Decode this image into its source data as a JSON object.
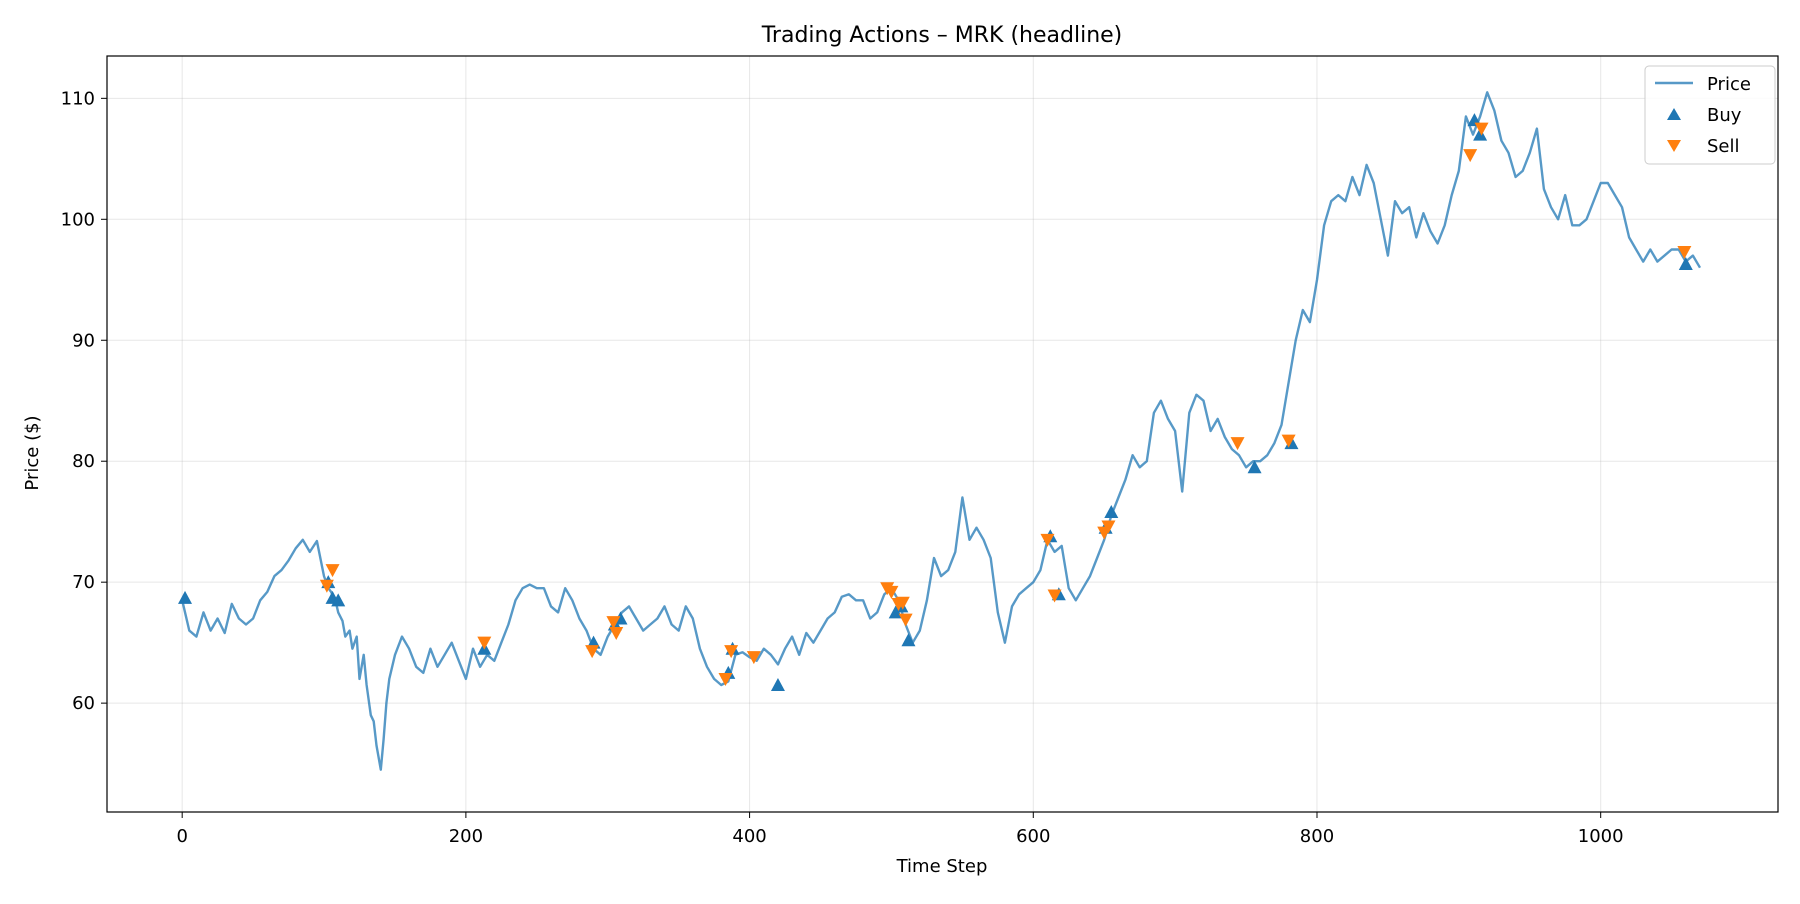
{
  "chart_data": {
    "type": "line",
    "title": "Trading Actions – MRK (headline)",
    "xlabel": "Time Step",
    "ylabel": "Price ($)",
    "xlim": [
      -53,
      1125
    ],
    "ylim": [
      51,
      113.5
    ],
    "xticks": [
      0,
      200,
      400,
      600,
      800,
      1000
    ],
    "yticks": [
      60,
      70,
      80,
      90,
      100,
      110
    ],
    "grid": true,
    "legend_position": "top-right",
    "colors": {
      "price": "#1f77b4",
      "buy": "#1f77b4",
      "sell": "#ff7f0e"
    },
    "series": [
      {
        "name": "Price",
        "x": [
          0,
          5,
          10,
          15,
          20,
          25,
          30,
          35,
          40,
          45,
          50,
          55,
          60,
          65,
          70,
          75,
          80,
          85,
          90,
          95,
          100,
          103,
          105,
          108,
          110,
          113,
          115,
          118,
          120,
          123,
          125,
          128,
          130,
          133,
          135,
          137,
          140,
          142,
          144,
          146,
          150,
          155,
          160,
          165,
          170,
          175,
          180,
          185,
          190,
          195,
          200,
          205,
          210,
          215,
          220,
          225,
          230,
          235,
          240,
          245,
          250,
          255,
          260,
          265,
          270,
          275,
          280,
          285,
          290,
          295,
          300,
          305,
          310,
          315,
          320,
          325,
          330,
          335,
          340,
          345,
          350,
          355,
          360,
          365,
          370,
          375,
          380,
          385,
          390,
          395,
          400,
          405,
          410,
          415,
          420,
          425,
          430,
          435,
          440,
          445,
          450,
          455,
          460,
          465,
          470,
          475,
          480,
          485,
          490,
          495,
          500,
          505,
          510,
          515,
          520,
          525,
          530,
          535,
          540,
          545,
          550,
          555,
          560,
          565,
          570,
          575,
          580,
          585,
          590,
          595,
          600,
          605,
          610,
          615,
          620,
          625,
          630,
          635,
          640,
          645,
          650,
          655,
          660,
          665,
          670,
          675,
          680,
          685,
          690,
          695,
          700,
          705,
          710,
          715,
          720,
          725,
          730,
          735,
          740,
          745,
          750,
          755,
          760,
          765,
          770,
          775,
          780,
          785,
          790,
          795,
          800,
          805,
          810,
          815,
          820,
          825,
          830,
          835,
          840,
          845,
          850,
          855,
          860,
          865,
          870,
          875,
          880,
          885,
          890,
          895,
          900,
          905,
          910,
          915,
          920,
          925,
          930,
          935,
          940,
          945,
          950,
          955,
          960,
          965,
          970,
          975,
          980,
          985,
          990,
          995,
          1000,
          1005,
          1010,
          1015,
          1020,
          1025,
          1030,
          1035,
          1040,
          1045,
          1050,
          1055,
          1060,
          1065,
          1070
        ],
        "values": [
          68.5,
          66.0,
          65.5,
          67.5,
          66.0,
          67.0,
          65.8,
          68.2,
          67.0,
          66.5,
          67.0,
          68.5,
          69.2,
          70.5,
          71.0,
          71.8,
          72.8,
          73.5,
          72.5,
          73.4,
          70.5,
          69.5,
          69.2,
          68.5,
          67.5,
          66.8,
          65.5,
          66.0,
          64.5,
          65.5,
          62.0,
          64.0,
          61.5,
          59.0,
          58.5,
          56.5,
          54.5,
          57.0,
          60.0,
          62.0,
          64.0,
          65.5,
          64.5,
          63.0,
          62.5,
          64.5,
          63.0,
          64.0,
          65.0,
          63.5,
          62.0,
          64.5,
          63.0,
          64.0,
          63.5,
          65.0,
          66.5,
          68.5,
          69.5,
          69.8,
          69.5,
          69.5,
          68.0,
          67.5,
          69.5,
          68.5,
          67.0,
          66.0,
          64.5,
          64.0,
          65.5,
          66.5,
          67.5,
          68.0,
          67.0,
          66.0,
          66.5,
          67.0,
          68.0,
          66.5,
          66.0,
          68.0,
          67.0,
          64.5,
          63.0,
          62.0,
          61.5,
          61.8,
          64.0,
          64.2,
          63.8,
          63.5,
          64.5,
          64.0,
          63.2,
          64.5,
          65.5,
          64.0,
          65.8,
          65.0,
          66.0,
          67.0,
          67.5,
          68.8,
          69.0,
          68.5,
          68.5,
          67.0,
          67.5,
          69.0,
          69.5,
          68.5,
          66.5,
          65.0,
          66.0,
          68.5,
          72.0,
          70.5,
          71.0,
          72.5,
          77.0,
          73.5,
          74.5,
          73.5,
          72.0,
          67.5,
          65.0,
          68.0,
          69.0,
          69.5,
          70.0,
          71.0,
          73.5,
          72.5,
          73.0,
          69.5,
          68.5,
          69.5,
          70.5,
          72.0,
          73.5,
          75.5,
          77.0,
          78.5,
          80.5,
          79.5,
          80.0,
          84.0,
          85.0,
          83.5,
          82.5,
          77.5,
          84.0,
          85.5,
          85.0,
          82.5,
          83.5,
          82.0,
          81.0,
          80.5,
          79.5,
          80.0,
          80.0,
          80.5,
          81.5,
          83.0,
          86.5,
          90.0,
          92.5,
          91.5,
          95.0,
          99.5,
          101.5,
          102.0,
          101.5,
          103.5,
          102.0,
          104.5,
          103.0,
          100.0,
          97.0,
          101.5,
          100.5,
          101.0,
          98.5,
          100.5,
          99.0,
          98.0,
          99.5,
          102.0,
          104.0,
          108.5,
          107.0,
          108.5,
          110.5,
          109.0,
          106.5,
          105.5,
          103.5,
          104.0,
          105.5,
          107.5,
          102.5,
          101.0,
          100.0,
          102.0,
          99.5,
          99.5,
          100.0,
          101.5,
          103.0,
          103.0,
          102.0,
          101.0,
          98.5,
          97.5,
          96.5,
          97.5,
          96.5,
          97.0,
          97.5,
          97.5,
          96.5,
          97.0,
          96.0
        ]
      },
      {
        "name": "Buy",
        "x": [
          2,
          103,
          106,
          110,
          213,
          290,
          305,
          309,
          385,
          388,
          420,
          503,
          507,
          512,
          612,
          618,
          651,
          655,
          756,
          782,
          911,
          915,
          1060
        ],
        "values": [
          68.7,
          70.0,
          68.7,
          68.5,
          64.5,
          65.0,
          66.5,
          67.0,
          62.5,
          64.5,
          61.5,
          67.5,
          68.0,
          65.2,
          73.8,
          69.0,
          74.5,
          75.8,
          79.5,
          81.5,
          108.2,
          107.0,
          96.3
        ]
      },
      {
        "name": "Sell",
        "x": [
          102,
          106,
          213,
          289,
          304,
          306,
          383,
          387,
          403,
          497,
          500,
          505,
          508,
          510,
          610,
          615,
          650,
          653,
          744,
          780,
          908,
          916,
          1059
        ],
        "values": [
          69.7,
          71.0,
          65.0,
          64.3,
          66.7,
          65.8,
          62.0,
          64.3,
          63.8,
          69.5,
          69.2,
          68.2,
          68.3,
          66.9,
          73.5,
          68.9,
          74.1,
          74.6,
          81.5,
          81.7,
          105.3,
          107.5,
          97.3
        ]
      }
    ]
  }
}
